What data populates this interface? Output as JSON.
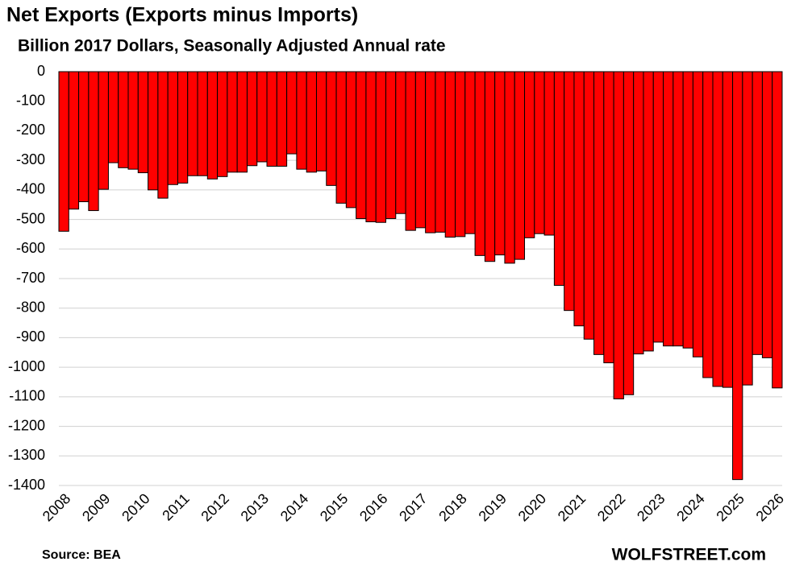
{
  "chart_data": {
    "type": "bar",
    "title": "Net Exports (Exports minus Imports)",
    "subtitle": "Billion 2017 Dollars, Seasonally Adjusted Annual rate",
    "source": "Source: BEA",
    "watermark": "WOLFSTREET.com",
    "color": "#ff0000",
    "categories": [
      "2008",
      null,
      null,
      null,
      "2009",
      null,
      null,
      null,
      "2010",
      null,
      null,
      null,
      "2011",
      null,
      null,
      null,
      "2012",
      null,
      null,
      null,
      "2013",
      null,
      null,
      null,
      "2014",
      null,
      null,
      null,
      "2015",
      null,
      null,
      null,
      "2016",
      null,
      null,
      null,
      "2017",
      null,
      null,
      null,
      "2018",
      null,
      null,
      null,
      "2019",
      null,
      null,
      null,
      "2020",
      null,
      null,
      null,
      "2021",
      null,
      null,
      null,
      "2022",
      null,
      null,
      null,
      "2023",
      null,
      null,
      null,
      "2024",
      null,
      null,
      null,
      "2025",
      null,
      null,
      null,
      "2026"
    ],
    "values": [
      -540,
      -465,
      -440,
      -470,
      -398,
      -308,
      -325,
      -330,
      -342,
      -400,
      -428,
      -382,
      -377,
      -352,
      -352,
      -363,
      -355,
      -340,
      -340,
      -318,
      -305,
      -320,
      -320,
      -278,
      -330,
      -340,
      -336,
      -385,
      -445,
      -460,
      -497,
      -508,
      -510,
      -497,
      -480,
      -537,
      -528,
      -545,
      -543,
      -560,
      -558,
      -548,
      -622,
      -642,
      -620,
      -648,
      -635,
      -562,
      -548,
      -553,
      -723,
      -808,
      -860,
      -905,
      -957,
      -985,
      -1107,
      -1093,
      -955,
      -945,
      -915,
      -928,
      -928,
      -935,
      -965,
      -1035,
      -1065,
      -1068,
      -1380,
      -1060,
      -957,
      -968,
      -1070
    ],
    "ylim": [
      -1400,
      0
    ],
    "yticks": [
      0,
      -100,
      -200,
      -300,
      -400,
      -500,
      -600,
      -700,
      -800,
      -900,
      -1000,
      -1100,
      -1200,
      -1300,
      -1400
    ],
    "grid": true
  }
}
